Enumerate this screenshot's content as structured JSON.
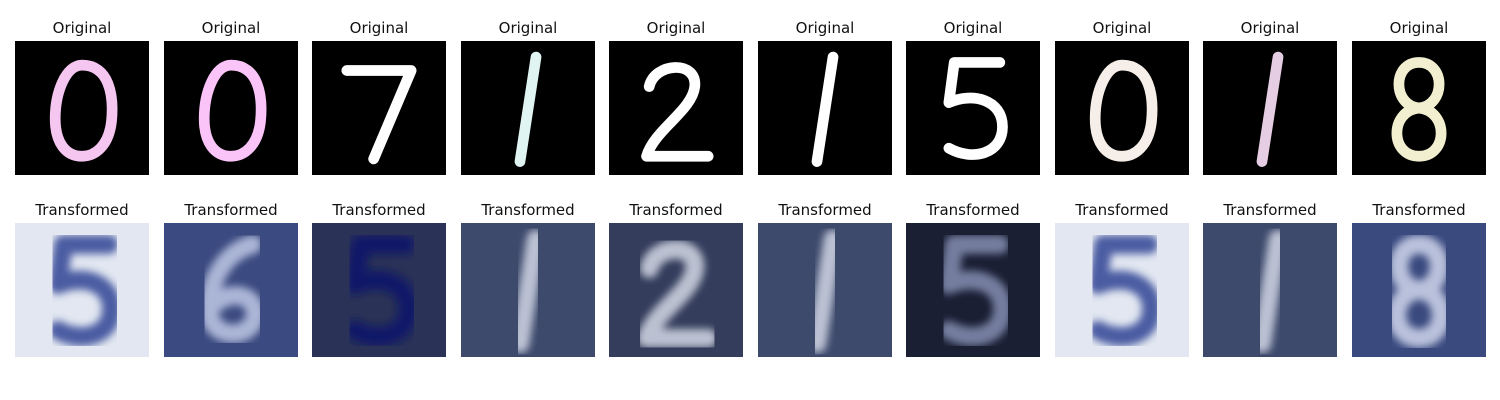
{
  "labels": {
    "original": "Original",
    "transformed": "Transformed"
  },
  "originals": [
    {
      "digit": "0",
      "color": "#f5c6f0"
    },
    {
      "digit": "0",
      "color": "#fbc4f9"
    },
    {
      "digit": "7",
      "color": "#ffffff"
    },
    {
      "digit": "1",
      "color": "#e0f4f1"
    },
    {
      "digit": "2",
      "color": "#ffffff"
    },
    {
      "digit": "1",
      "color": "#ffffff"
    },
    {
      "digit": "5",
      "color": "#ffffff"
    },
    {
      "digit": "0",
      "color": "#f6efe9"
    },
    {
      "digit": "1",
      "color": "#e5cde3"
    },
    {
      "digit": "8",
      "color": "#f2efd0"
    }
  ],
  "transformed": [
    {
      "digit": "5",
      "bg": "#e2e7f1",
      "fg": "#3a4d9a"
    },
    {
      "digit": "6",
      "bg": "#3b4a80",
      "fg": "#b8c1e0"
    },
    {
      "digit": "5",
      "bg": "#2a3258",
      "fg": "#10186a"
    },
    {
      "digit": "1",
      "bg": "#3e4a6c",
      "fg": "#c9cfdf"
    },
    {
      "digit": "2",
      "bg": "#343d5c",
      "fg": "#cbd0de"
    },
    {
      "digit": "1",
      "bg": "#3e4a6c",
      "fg": "#c9cfdf"
    },
    {
      "digit": "5",
      "bg": "#1a1f34",
      "fg": "#7f88ab"
    },
    {
      "digit": "5",
      "bg": "#e2e7f1",
      "fg": "#3a4d9a"
    },
    {
      "digit": "1",
      "bg": "#3e4a6c",
      "fg": "#c9cfdf"
    },
    {
      "digit": "8",
      "bg": "#3a4a7f",
      "fg": "#c8cfe6"
    }
  ]
}
